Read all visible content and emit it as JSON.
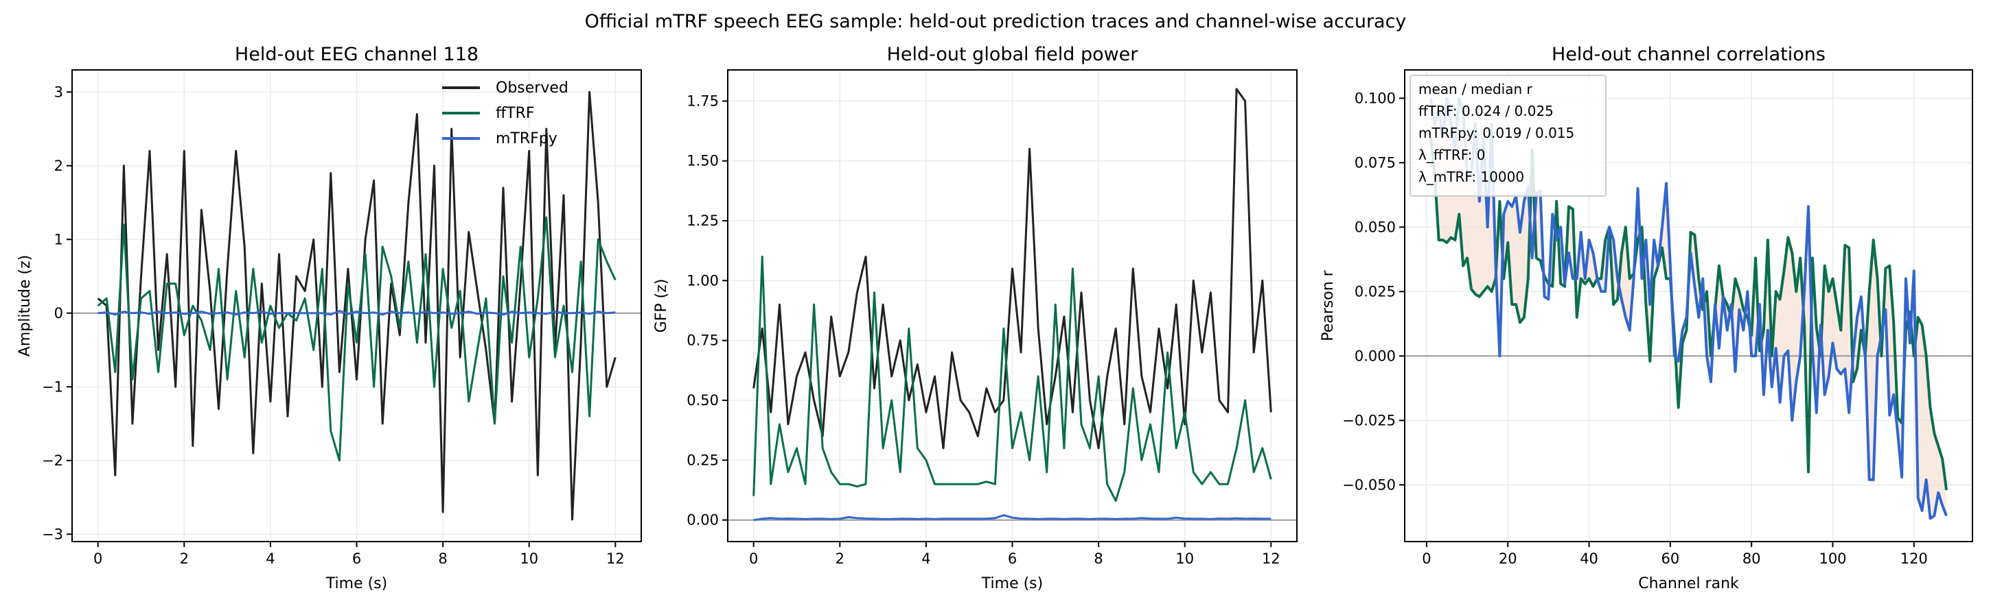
{
  "suptitle": "Official mTRF speech EEG sample: held-out prediction traces and channel-wise accuracy",
  "colors": {
    "observed": "#222222",
    "fftrf": "#0a6e4e",
    "mtrfpy": "#3366cc",
    "fill": "#f3dccd",
    "zero_line": "#999999",
    "grid": "#ebebeb"
  },
  "chart_data": [
    {
      "type": "line",
      "title": "Held-out EEG channel 118",
      "xlabel": "Time (s)",
      "ylabel": "Amplitude (z)",
      "xlim": [
        -0.6,
        12.6
      ],
      "ylim": [
        -3.1,
        3.3
      ],
      "xticks": [
        0,
        2,
        4,
        6,
        8,
        10,
        12
      ],
      "xtick_labels": [
        "0",
        "2",
        "4",
        "6",
        "8",
        "10",
        "12"
      ],
      "yticks": [
        -3,
        -2,
        -1,
        0,
        1,
        2,
        3
      ],
      "ytick_labels": [
        "−3",
        "−2",
        "−1",
        "0",
        "1",
        "2",
        "3"
      ],
      "grid": true,
      "zero_line": true,
      "legend": "top-right",
      "x": [
        0,
        0.2,
        0.4,
        0.6,
        0.8,
        1,
        1.2,
        1.4,
        1.6,
        1.8,
        2,
        2.2,
        2.4,
        2.6,
        2.8,
        3,
        3.2,
        3.4,
        3.6,
        3.8,
        4,
        4.2,
        4.4,
        4.6,
        4.8,
        5,
        5.2,
        5.4,
        5.6,
        5.8,
        6,
        6.2,
        6.4,
        6.6,
        6.8,
        7,
        7.2,
        7.4,
        7.6,
        7.8,
        8,
        8.2,
        8.4,
        8.6,
        8.8,
        9,
        9.2,
        9.4,
        9.6,
        9.8,
        10,
        10.2,
        10.4,
        10.6,
        10.8,
        11,
        11.2,
        11.4,
        11.6,
        11.8,
        12
      ],
      "series": [
        {
          "name": "Observed",
          "color_key": "observed",
          "values": [
            0.2,
            0.1,
            -2.2,
            2.0,
            -1.5,
            0.5,
            2.2,
            -0.5,
            0.8,
            -1.0,
            2.2,
            -1.8,
            1.4,
            0.3,
            -1.3,
            0.6,
            2.2,
            0.9,
            -1.9,
            0.4,
            -1.2,
            0.8,
            -1.4,
            0.5,
            0.3,
            1.0,
            -1.0,
            1.9,
            -0.8,
            0.6,
            -0.9,
            1.0,
            1.8,
            -1.5,
            0.4,
            -0.3,
            1.5,
            2.7,
            -0.4,
            2.0,
            -2.7,
            2.5,
            -0.6,
            1.1,
            0.3,
            -0.5,
            -1.5,
            1.7,
            -1.2,
            0.4,
            2.2,
            -2.2,
            2.5,
            -0.5,
            1.6,
            -2.8,
            -0.4,
            3.0,
            1.5,
            -1.0,
            -0.6
          ]
        },
        {
          "name": "ffTRF",
          "color_key": "fftrf",
          "values": [
            0.1,
            0.2,
            -0.8,
            1.2,
            -0.9,
            0.2,
            0.3,
            -0.8,
            0.4,
            0.4,
            -0.3,
            0.1,
            -0.1,
            -0.5,
            0.6,
            -0.9,
            0.3,
            -0.6,
            0.6,
            -0.4,
            0.1,
            -0.2,
            0.0,
            -0.1,
            0.2,
            -0.5,
            0.6,
            -1.6,
            -2.0,
            0.4,
            -0.4,
            0.8,
            -1.0,
            0.9,
            0.5,
            -0.2,
            0.7,
            -0.4,
            0.8,
            -1.0,
            0.6,
            -0.2,
            0.3,
            -1.2,
            -0.5,
            0.2,
            -1.5,
            0.5,
            -0.4,
            0.9,
            -0.6,
            0.2,
            1.3,
            -0.6,
            0.1,
            -0.8,
            0.7,
            -1.4,
            1.0,
            0.7,
            0.45
          ]
        },
        {
          "name": "mTRFpy",
          "color_key": "mtrfpy",
          "values": [
            0,
            0.01,
            -0.02,
            0.02,
            0,
            0.01,
            -0.01,
            0.02,
            0,
            0.01,
            -0.01,
            0,
            0.02,
            -0.01,
            0,
            0.01,
            -0.02,
            0.01,
            0,
            0.02,
            -0.01,
            0,
            0,
            0,
            0,
            0,
            0,
            -0.02,
            0.03,
            -0.01,
            0.02,
            0,
            0.01,
            -0.02,
            0.02,
            0,
            0.01,
            -0.01,
            0.02,
            0,
            0.01,
            -0.01,
            0,
            0.02,
            -0.01,
            0.01,
            0,
            -0.02,
            0.02,
            0,
            0.01,
            0,
            -0.01,
            0.02,
            0,
            0,
            0.01,
            -0.01,
            0.02,
            0,
            0.01
          ]
        }
      ]
    },
    {
      "type": "line",
      "title": "Held-out global field power",
      "xlabel": "Time (s)",
      "ylabel": "GFP (z)",
      "xlim": [
        -0.6,
        12.6
      ],
      "ylim": [
        -0.09,
        1.88
      ],
      "xticks": [
        0,
        2,
        4,
        6,
        8,
        10,
        12
      ],
      "xtick_labels": [
        "0",
        "2",
        "4",
        "6",
        "8",
        "10",
        "12"
      ],
      "yticks": [
        0,
        0.25,
        0.5,
        0.75,
        1.0,
        1.25,
        1.5,
        1.75
      ],
      "ytick_labels": [
        "0.00",
        "0.25",
        "0.50",
        "0.75",
        "1.00",
        "1.25",
        "1.50",
        "1.75"
      ],
      "grid": true,
      "zero_line": true,
      "x": [
        0,
        0.2,
        0.4,
        0.6,
        0.8,
        1,
        1.2,
        1.4,
        1.6,
        1.8,
        2,
        2.2,
        2.4,
        2.6,
        2.8,
        3,
        3.2,
        3.4,
        3.6,
        3.8,
        4,
        4.2,
        4.4,
        4.6,
        4.8,
        5,
        5.2,
        5.4,
        5.6,
        5.8,
        6,
        6.2,
        6.4,
        6.6,
        6.8,
        7,
        7.2,
        7.4,
        7.6,
        7.8,
        8,
        8.2,
        8.4,
        8.6,
        8.8,
        9,
        9.2,
        9.4,
        9.6,
        9.8,
        10,
        10.2,
        10.4,
        10.6,
        10.8,
        11,
        11.2,
        11.4,
        11.6,
        11.8,
        12
      ],
      "series": [
        {
          "color_key": "observed",
          "values": [
            0.55,
            0.8,
            0.45,
            0.9,
            0.4,
            0.6,
            0.7,
            0.5,
            0.35,
            0.85,
            0.6,
            0.7,
            0.95,
            1.1,
            0.55,
            0.9,
            0.6,
            0.75,
            0.5,
            0.65,
            0.45,
            0.6,
            0.3,
            0.7,
            0.5,
            0.45,
            0.35,
            0.55,
            0.45,
            0.5,
            1.05,
            0.7,
            1.55,
            0.8,
            0.4,
            0.6,
            0.85,
            0.45,
            0.95,
            0.5,
            0.3,
            0.6,
            0.8,
            0.4,
            1.05,
            0.6,
            0.45,
            0.8,
            0.55,
            0.9,
            0.4,
            1.0,
            0.7,
            0.95,
            0.5,
            0.45,
            1.8,
            1.75,
            0.7,
            1.0,
            0.45
          ]
        },
        {
          "color_key": "fftrf",
          "values": [
            0.1,
            1.1,
            0.15,
            0.4,
            0.2,
            0.3,
            0.15,
            0.9,
            0.3,
            0.2,
            0.15,
            0.15,
            0.14,
            0.15,
            0.95,
            0.3,
            0.5,
            0.2,
            0.8,
            0.3,
            0.25,
            0.15,
            0.15,
            0.15,
            0.15,
            0.15,
            0.15,
            0.16,
            0.15,
            0.8,
            0.3,
            0.45,
            0.25,
            0.6,
            0.2,
            0.9,
            0.3,
            1.05,
            0.4,
            0.3,
            0.6,
            0.15,
            0.08,
            0.2,
            0.55,
            0.25,
            0.4,
            0.2,
            0.7,
            0.3,
            0.45,
            0.2,
            0.15,
            0.2,
            0.15,
            0.15,
            0.3,
            0.5,
            0.2,
            0.3,
            0.17
          ]
        },
        {
          "color_key": "mtrfpy",
          "values": [
            0.0,
            0.005,
            0.008,
            0.005,
            0.006,
            0.005,
            0.004,
            0.005,
            0.005,
            0.004,
            0.005,
            0.012,
            0.008,
            0.006,
            0.005,
            0.004,
            0.004,
            0.005,
            0.005,
            0.004,
            0.005,
            0.004,
            0.005,
            0.005,
            0.005,
            0.005,
            0.005,
            0.005,
            0.008,
            0.02,
            0.01,
            0.006,
            0.005,
            0.004,
            0.005,
            0.005,
            0.004,
            0.005,
            0.005,
            0.004,
            0.005,
            0.005,
            0.004,
            0.005,
            0.005,
            0.008,
            0.006,
            0.005,
            0.005,
            0.01,
            0.006,
            0.005,
            0.005,
            0.004,
            0.006,
            0.005,
            0.007,
            0.005,
            0.006,
            0.005,
            0.005
          ]
        }
      ]
    },
    {
      "type": "line",
      "title": "Held-out channel correlations",
      "xlabel": "Channel rank",
      "ylabel": "Pearson r",
      "xlim": [
        -5.4,
        134.4
      ],
      "ylim": [
        -0.072,
        0.111
      ],
      "xticks": [
        0,
        20,
        40,
        60,
        80,
        100,
        120
      ],
      "xtick_labels": [
        "0",
        "20",
        "40",
        "60",
        "80",
        "100",
        "120"
      ],
      "yticks": [
        -0.05,
        -0.025,
        0,
        0.025,
        0.05,
        0.075,
        0.1
      ],
      "ytick_labels": [
        "−0.050",
        "−0.025",
        "0.000",
        "0.025",
        "0.050",
        "0.075",
        "0.100"
      ],
      "grid": true,
      "zero_line": true,
      "fill_between": true,
      "annotation": [
        "mean / median r",
        "ffTRF: 0.024 / 0.025",
        "mTRFpy: 0.019 / 0.015",
        "λ_ffTRF: 0",
        "λ_mTRF: 10000"
      ],
      "x_start": 1,
      "series": [
        {
          "name": "ffTRF",
          "color_key": "fftrf",
          "values": [
            0.085,
            0.07,
            0.045,
            0.045,
            0.044,
            0.046,
            0.045,
            0.055,
            0.035,
            0.038,
            0.026,
            0.024,
            0.023,
            0.025,
            0.027,
            0.025,
            0.03,
            0.06,
            0.03,
            0.044,
            0.02,
            0.02,
            0.013,
            0.015,
            0.03,
            0.08,
            0.038,
            0.037,
            0.031,
            0.028,
            0.027,
            0.06,
            0.028,
            0.027,
            0.058,
            0.057,
            0.015,
            0.03,
            0.028,
            0.03,
            0.027,
            0.03,
            0.03,
            0.045,
            0.05,
            0.02,
            0.022,
            0.04,
            0.05,
            0.03,
            0.032,
            0.045,
            0.05,
            0.02,
            -0.002,
            0.03,
            0.035,
            0.042,
            0.03,
            0.03,
            0.008,
            -0.02,
            0.005,
            0.01,
            0.048,
            0.047,
            0.03,
            0.018,
            0.025,
            0.0,
            0.018,
            0.035,
            0.023,
            0.02,
            0.015,
            0.03,
            0.025,
            0.018,
            0.015,
            0.008,
            0.038,
            0.002,
            0.01,
            0.045,
            0.0,
            0.025,
            0.022,
            0.033,
            0.046,
            0.04,
            0.025,
            0.038,
            0.012,
            -0.045,
            0.038,
            0.011,
            0.0,
            0.035,
            0.025,
            0.03,
            0.02,
            0.01,
            0.043,
            0.042,
            -0.01,
            -0.005,
            0.01,
            0.0,
            0.025,
            0.045,
            0.03,
            0.0,
            0.034,
            0.035,
            0.013,
            -0.024,
            -0.026,
            0.01,
            0.017,
            0.0,
            0.015,
            0.012,
            0.0,
            -0.02,
            -0.03,
            -0.035,
            -0.04,
            -0.052
          ]
        },
        {
          "name": "mTRFpy",
          "color_key": "mtrfpy",
          "values": [
            0.1,
            0.09,
            0.095,
            0.085,
            0.1,
            0.09,
            0.08,
            0.1,
            0.095,
            0.07,
            0.07,
            0.09,
            0.06,
            0.085,
            0.05,
            0.09,
            0.035,
            0.0,
            0.055,
            0.06,
            0.058,
            0.062,
            0.048,
            0.06,
            0.066,
            0.038,
            0.063,
            0.064,
            0.023,
            0.022,
            0.055,
            0.045,
            0.05,
            0.028,
            0.04,
            0.03,
            0.03,
            0.048,
            0.03,
            0.045,
            0.04,
            0.03,
            0.025,
            0.025,
            0.05,
            0.045,
            0.03,
            0.022,
            0.015,
            0.01,
            0.03,
            0.065,
            0.03,
            0.045,
            0.02,
            0.045,
            0.035,
            0.05,
            0.067,
            0.035,
            0.0,
            -0.002,
            0.01,
            0.015,
            0.04,
            0.027,
            0.015,
            0.03,
            0.0,
            -0.01,
            0.02,
            0.003,
            0.023,
            0.01,
            0.02,
            -0.006,
            0.018,
            0.01,
            0.025,
            0.0,
            0.0,
            0.02,
            -0.015,
            0.01,
            -0.012,
            0.003,
            -0.018,
            0.0,
            0.002,
            -0.025,
            -0.01,
            0.0,
            0.025,
            0.058,
            0.003,
            -0.022,
            0.012,
            -0.015,
            -0.008,
            0.005,
            -0.005,
            -0.007,
            -0.005,
            -0.022,
            0.0,
            0.015,
            0.023,
            0.0,
            -0.048,
            -0.048,
            0.0,
            0.008,
            0.018,
            -0.023,
            -0.015,
            -0.03,
            -0.047,
            0.03,
            0.005,
            0.033,
            -0.055,
            -0.06,
            -0.048,
            -0.063,
            -0.062,
            -0.053,
            -0.058,
            -0.062
          ]
        }
      ]
    }
  ]
}
